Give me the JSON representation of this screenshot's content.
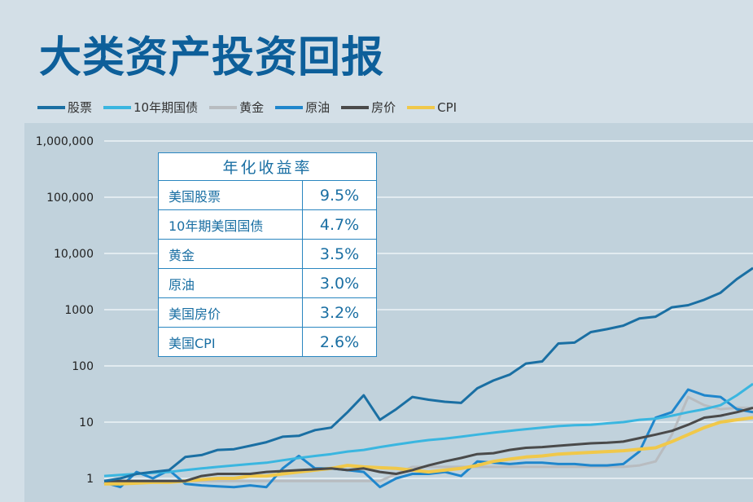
{
  "title": "大类资产投资回报",
  "chart_data": {
    "type": "line",
    "title": "大类资产投资回报",
    "yscale": "log",
    "ylim": [
      0.6,
      1000000
    ],
    "yticks": [
      1,
      10,
      100,
      1000,
      10000,
      100000,
      1000000
    ],
    "ytick_labels": [
      "1",
      "10",
      "100",
      "1000",
      "10,000",
      "100,000",
      "1,000,000"
    ],
    "grid": true,
    "legend_position": "top",
    "x": [
      0,
      1,
      2,
      3,
      4,
      5,
      6,
      7,
      8,
      9,
      10,
      11,
      12,
      13,
      14,
      15,
      16,
      17,
      18,
      19,
      20,
      21,
      22,
      23,
      24,
      25,
      26,
      27,
      28,
      29,
      30,
      31,
      32,
      33,
      34,
      35,
      36,
      37,
      38,
      39,
      40
    ],
    "series": [
      {
        "name": "股票",
        "color": "#1a6fa3",
        "values": [
          0.9,
          1.0,
          1.2,
          1.3,
          1.4,
          2.4,
          2.6,
          3.2,
          3.3,
          3.8,
          4.4,
          5.5,
          5.7,
          7.2,
          8,
          15,
          30,
          11,
          17,
          28,
          25,
          23,
          22,
          40,
          55,
          70,
          110,
          120,
          250,
          260,
          400,
          450,
          520,
          700,
          750,
          1100,
          1200,
          1500,
          2000,
          3500,
          5500
        ]
      },
      {
        "name": "10年期国债",
        "color": "#3ab6e0",
        "values": [
          1.1,
          1.15,
          1.2,
          1.25,
          1.3,
          1.4,
          1.5,
          1.6,
          1.7,
          1.8,
          1.9,
          2.1,
          2.3,
          2.5,
          2.7,
          3,
          3.2,
          3.6,
          4,
          4.4,
          4.8,
          5.1,
          5.5,
          6,
          6.5,
          7,
          7.5,
          8,
          8.5,
          8.8,
          9,
          9.5,
          10,
          11,
          11.5,
          13,
          15,
          17,
          20,
          30,
          48
        ]
      },
      {
        "name": "黄金",
        "color": "#b8bcc0",
        "values": [
          0.9,
          0.9,
          0.9,
          0.9,
          0.9,
          0.9,
          0.9,
          0.9,
          0.9,
          0.9,
          0.9,
          0.9,
          0.9,
          0.9,
          0.9,
          0.9,
          0.9,
          0.9,
          1.2,
          1.6,
          1.6,
          1.6,
          1.6,
          1.6,
          1.6,
          1.6,
          1.6,
          1.6,
          1.6,
          1.6,
          1.6,
          1.6,
          1.6,
          1.7,
          2,
          6,
          28,
          20,
          17,
          18,
          18
        ]
      },
      {
        "name": "原油",
        "color": "#1f86cc",
        "values": [
          0.85,
          0.7,
          1.3,
          1.0,
          1.4,
          0.8,
          0.75,
          0.72,
          0.7,
          0.75,
          0.7,
          1.5,
          2.5,
          1.5,
          1.5,
          1.4,
          1.3,
          0.7,
          1.0,
          1.2,
          1.2,
          1.3,
          1.1,
          2.0,
          1.9,
          1.8,
          1.9,
          1.9,
          1.8,
          1.8,
          1.7,
          1.7,
          1.8,
          3,
          12,
          15,
          38,
          30,
          28,
          17,
          15
        ]
      },
      {
        "name": "房价",
        "color": "#4a4a4a",
        "values": [
          0.9,
          0.9,
          0.9,
          0.9,
          0.9,
          0.9,
          1.1,
          1.2,
          1.2,
          1.2,
          1.3,
          1.35,
          1.4,
          1.45,
          1.5,
          1.4,
          1.5,
          1.3,
          1.2,
          1.4,
          1.7,
          2,
          2.3,
          2.7,
          2.8,
          3.2,
          3.5,
          3.6,
          3.8,
          4,
          4.2,
          4.3,
          4.5,
          5.2,
          6,
          7,
          9,
          12,
          13,
          15,
          18
        ]
      },
      {
        "name": "CPI",
        "color": "#f0c84a",
        "values": [
          0.8,
          0.8,
          0.82,
          0.85,
          0.85,
          0.9,
          0.95,
          1.0,
          1.0,
          1.1,
          1.1,
          1.2,
          1.3,
          1.4,
          1.5,
          1.7,
          1.6,
          1.55,
          1.5,
          1.4,
          1.3,
          1.4,
          1.5,
          1.7,
          2,
          2.2,
          2.4,
          2.5,
          2.7,
          2.8,
          2.9,
          3,
          3.1,
          3.3,
          3.5,
          4.5,
          6,
          8,
          10,
          11,
          12
        ]
      }
    ]
  },
  "table": {
    "header": "年化收益率",
    "rows": [
      {
        "label": "美国股票",
        "value": "9.5%"
      },
      {
        "label": "10年期美国国债",
        "value": "4.7%"
      },
      {
        "label": "黄金",
        "value": "3.5%"
      },
      {
        "label": "原油",
        "value": "3.0%"
      },
      {
        "label": "美国房价",
        "value": "3.2%"
      },
      {
        "label": "美国CPI",
        "value": "2.6%"
      }
    ]
  }
}
